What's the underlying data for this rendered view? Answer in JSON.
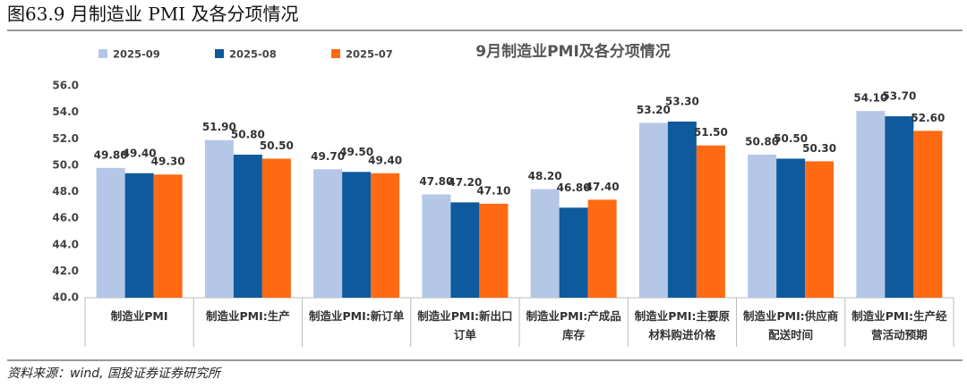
{
  "chart_data": {
    "type": "bar",
    "caption": "图63.9 月制造业 PMI 及各分项情况",
    "title": "9月制造业PMI及各分项情况",
    "source": "资料来源：wind, 国投证券证券研究所",
    "categories": [
      "制造业PMI",
      "制造业PMI:生产",
      "制造业PMI:新订单",
      "制造业PMI:新出口订单",
      "制造业PMI:产成品库存",
      "制造业PMI:主要原材料购进价格",
      "制造业PMI:供应商配送时间",
      "制造业PMI:生产经营活动预期"
    ],
    "series": [
      {
        "name": "2025-09",
        "color": "#b4c7e7",
        "values": [
          49.8,
          51.9,
          49.7,
          47.8,
          48.2,
          53.2,
          50.8,
          54.1
        ],
        "value_labels": [
          "49.80",
          "51.90",
          "49.70",
          "47.80",
          "48.20",
          "53.20",
          "50.80",
          "54.10"
        ]
      },
      {
        "name": "2025-08",
        "color": "#0e5a9c",
        "values": [
          49.4,
          50.8,
          49.5,
          47.2,
          46.8,
          53.3,
          50.5,
          53.7
        ],
        "value_labels": [
          "49.40",
          "50.80",
          "49.50",
          "47.20",
          "46.80",
          "53.30",
          "50.50",
          "53.70"
        ]
      },
      {
        "name": "2025-07",
        "color": "#ff6a13",
        "values": [
          49.3,
          50.5,
          49.4,
          47.1,
          47.4,
          51.5,
          50.3,
          52.6
        ],
        "value_labels": [
          "49.30",
          "50.50",
          "49.40",
          "47.10",
          "47.40",
          "51.50",
          "50.30",
          "52.60"
        ]
      }
    ],
    "ylim": [
      40,
      56
    ],
    "yticks": [
      {
        "value": 40,
        "label": "40.0"
      },
      {
        "value": 42,
        "label": "42.0"
      },
      {
        "value": 44,
        "label": "44.0"
      },
      {
        "value": 46,
        "label": "46.0"
      },
      {
        "value": 48,
        "label": "48.0"
      },
      {
        "value": 50,
        "label": "50.0"
      },
      {
        "value": 52,
        "label": "52.0"
      },
      {
        "value": 54,
        "label": "54.0"
      },
      {
        "value": 56,
        "label": "56.0"
      }
    ],
    "legend": "top-left",
    "grid": false
  }
}
